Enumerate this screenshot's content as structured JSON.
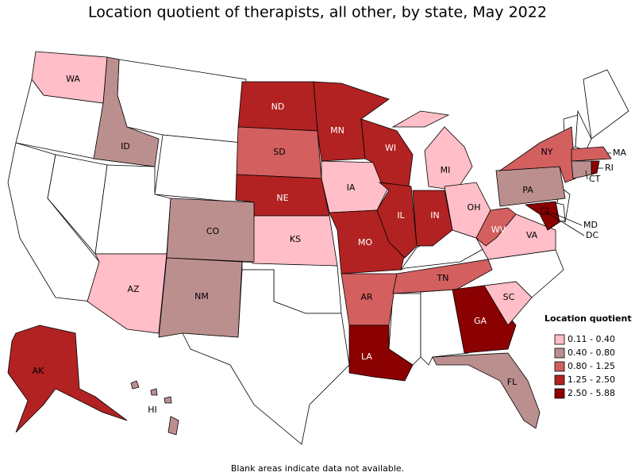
{
  "title": "Location quotient of therapists, all other, by state, May 2022",
  "map": {
    "states": [
      {
        "abbr": "WA",
        "color": "#ffbec8"
      },
      {
        "abbr": "ID",
        "color": "#bc8f8f"
      },
      {
        "abbr": "ND",
        "color": "#b22222"
      },
      {
        "abbr": "SD",
        "color": "#d35f5f"
      },
      {
        "abbr": "NE",
        "color": "#b22222"
      },
      {
        "abbr": "KS",
        "color": "#ffbec8"
      },
      {
        "abbr": "CO",
        "color": "#bc8f8f"
      },
      {
        "abbr": "NM",
        "color": "#bc8f8f"
      },
      {
        "abbr": "AZ",
        "color": "#ffbec8"
      },
      {
        "abbr": "MN",
        "color": "#b22222"
      },
      {
        "abbr": "IA",
        "color": "#ffbec8"
      },
      {
        "abbr": "MO",
        "color": "#b22222"
      },
      {
        "abbr": "AR",
        "color": "#d35f5f"
      },
      {
        "abbr": "LA",
        "color": "#8b0000"
      },
      {
        "abbr": "WI",
        "color": "#b22222"
      },
      {
        "abbr": "IL",
        "color": "#b22222"
      },
      {
        "abbr": "MI",
        "color": "#ffbec8"
      },
      {
        "abbr": "IN",
        "color": "#b22222"
      },
      {
        "abbr": "OH",
        "color": "#ffbec8"
      },
      {
        "abbr": "TN",
        "color": "#d35f5f"
      },
      {
        "abbr": "GA",
        "color": "#8b0000"
      },
      {
        "abbr": "SC",
        "color": "#ffbec8"
      },
      {
        "abbr": "FL",
        "color": "#bc8f8f"
      },
      {
        "abbr": "VA",
        "color": "#ffbec8"
      },
      {
        "abbr": "WV",
        "color": "#d35f5f"
      },
      {
        "abbr": "PA",
        "color": "#bc8f8f"
      },
      {
        "abbr": "NY",
        "color": "#d35f5f"
      },
      {
        "abbr": "MA",
        "color": "#d35f5f"
      },
      {
        "abbr": "RI",
        "color": "#8b0000"
      },
      {
        "abbr": "CT",
        "color": "#bc8f8f"
      },
      {
        "abbr": "MD",
        "color": "#8b0000"
      },
      {
        "abbr": "DC",
        "color": "#8b0000"
      },
      {
        "abbr": "AK",
        "color": "#b22222"
      },
      {
        "abbr": "HI",
        "color": "#bc8f8f"
      }
    ]
  },
  "legend": {
    "title": "Location quotient",
    "items": [
      {
        "label": "0.11 - 0.40",
        "color": "#ffbec8"
      },
      {
        "label": "0.40 - 0.80",
        "color": "#bc8f8f"
      },
      {
        "label": "0.80 - 1.25",
        "color": "#d35f5f"
      },
      {
        "label": "1.25 - 2.50",
        "color": "#b22222"
      },
      {
        "label": "2.50 - 5.88",
        "color": "#8b0000"
      }
    ]
  },
  "note": "Blank areas indicate data not available."
}
